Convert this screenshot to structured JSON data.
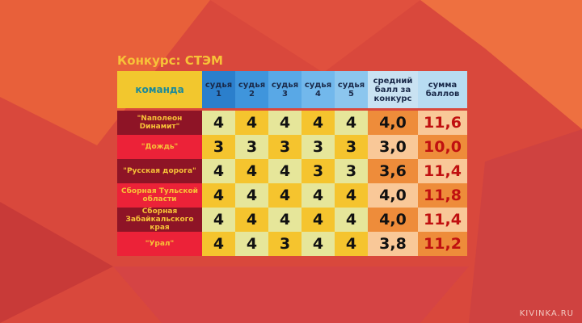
{
  "title": "Конкурс: СТЭМ",
  "header": {
    "team": "команда",
    "judges": [
      "судья 1",
      "судья 2",
      "судья 3",
      "судья 4",
      "судья 5"
    ],
    "average": "средний балл за конкурс",
    "sum": "сумма баллов"
  },
  "rows": [
    {
      "team": "\"Naпoлeoн Dинaмит\"",
      "scores": [
        "4",
        "4",
        "4",
        "4",
        "4"
      ],
      "average": "4,0",
      "sum": "11,6"
    },
    {
      "team": "\"Дождь\"",
      "scores": [
        "3",
        "3",
        "3",
        "3",
        "3"
      ],
      "average": "3,0",
      "sum": "10,0"
    },
    {
      "team": "\"Русская дорога\"",
      "scores": [
        "4",
        "4",
        "4",
        "3",
        "3"
      ],
      "average": "3,6",
      "sum": "11,4"
    },
    {
      "team": "Сборная Тульской области",
      "scores": [
        "4",
        "4",
        "4",
        "4",
        "4"
      ],
      "average": "4,0",
      "sum": "11,8"
    },
    {
      "team": "Сборная Забайкальского края",
      "scores": [
        "4",
        "4",
        "4",
        "4",
        "4"
      ],
      "average": "4,0",
      "sum": "11,4"
    },
    {
      "team": "\"Урал\"",
      "scores": [
        "4",
        "4",
        "3",
        "4",
        "4"
      ],
      "average": "3,8",
      "sum": "11,2"
    }
  ],
  "watermark": "KIVINKA.RU",
  "colors": {
    "team_dark": "#8e1426",
    "team_bright": "#ec2238",
    "cell_light": "#e6e69a",
    "cell_yellow": "#f5c42e",
    "avg_dark": "#ee8c3a",
    "avg_light": "#f9c898",
    "sum_red": "#c01010"
  }
}
